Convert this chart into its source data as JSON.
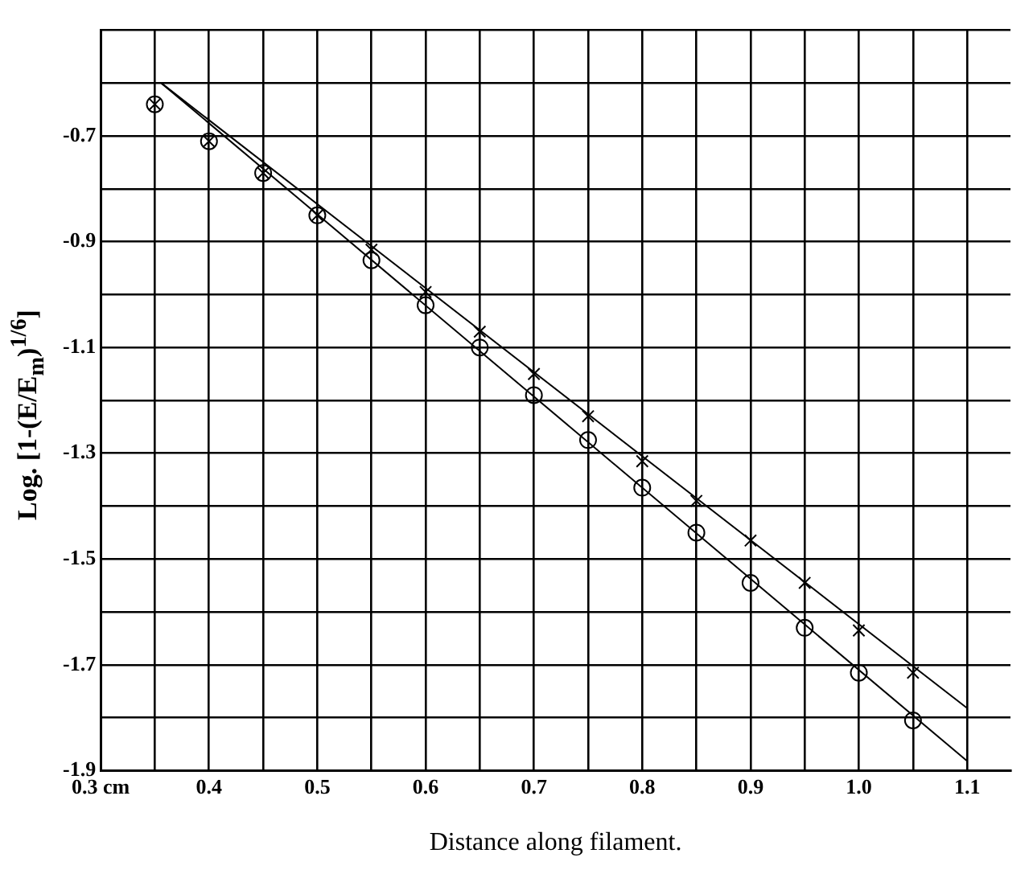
{
  "chart_data": {
    "type": "scatter",
    "xlabel": "Distance along filament.",
    "ylabel": "Log. [1-(E/E$_{m}$)$^{1/6}$]",
    "xlim": [
      0.3,
      1.14
    ],
    "ylim": [
      -1.9,
      -0.5
    ],
    "xticks": [
      {
        "value": 0.3,
        "label": "0.3 cm"
      },
      {
        "value": 0.35,
        "label": null
      },
      0.4,
      {
        "value": 0.45,
        "label": null
      },
      0.5,
      {
        "value": 0.55,
        "label": null
      },
      0.6,
      {
        "value": 0.65,
        "label": null
      },
      0.7,
      {
        "value": 0.75,
        "label": null
      },
      0.8,
      {
        "value": 0.85,
        "label": null
      },
      0.9,
      {
        "value": 0.95,
        "label": null
      },
      {
        "value": 1,
        "label": "1.0"
      },
      {
        "value": 1.05,
        "label": null
      },
      1.1
    ],
    "yticks": [
      -1.9,
      {
        "value": -1.8,
        "label": null
      },
      -1.7,
      {
        "value": -1.6,
        "label": null
      },
      -1.5,
      {
        "value": -1.4,
        "label": null
      },
      -1.3,
      {
        "value": -1.2,
        "label": null
      },
      -1.1,
      {
        "value": -1.0,
        "label": null
      },
      -0.9,
      {
        "value": -0.8,
        "label": null
      },
      -0.7,
      {
        "value": -0.6,
        "label": null
      },
      {
        "value": -0.5,
        "label": null
      }
    ],
    "grid": true,
    "legend": false,
    "series": [
      {
        "marker": "circle",
        "color": "#000000",
        "x": [
          0.35,
          0.4,
          0.45,
          0.5,
          0.55,
          0.6,
          0.65,
          0.7,
          0.75,
          0.8,
          0.85,
          0.9,
          0.95,
          1.0,
          1.05
        ],
        "values": [
          -0.64,
          -0.71,
          -0.77,
          -0.85,
          -0.935,
          -1.02,
          -1.1,
          -1.19,
          -1.275,
          -1.365,
          -1.45,
          -1.545,
          -1.63,
          -1.715,
          -1.805
        ]
      },
      {
        "marker": "cross",
        "color": "#000000",
        "x": [
          0.35,
          0.4,
          0.45,
          0.5,
          0.55,
          0.6,
          0.65,
          0.7,
          0.75,
          0.8,
          0.85,
          0.9,
          0.95,
          1.0,
          1.05
        ],
        "values": [
          -0.64,
          -0.71,
          -0.77,
          -0.85,
          -0.915,
          -0.995,
          -1.07,
          -1.15,
          -1.23,
          -1.315,
          -1.39,
          -1.465,
          -1.545,
          -1.635,
          -1.715
        ]
      },
      {
        "type": "line",
        "marker": "none",
        "line_style": "solid",
        "color": "#000000",
        "x": [
          0.356,
          1.1
        ],
        "values": [
          -0.6,
          -1.782
        ]
      },
      {
        "type": "line",
        "marker": "none",
        "line_style": "solid",
        "color": "#000000",
        "x": [
          0.356,
          1.1
        ],
        "values": [
          -0.6,
          -1.882
        ]
      }
    ]
  }
}
